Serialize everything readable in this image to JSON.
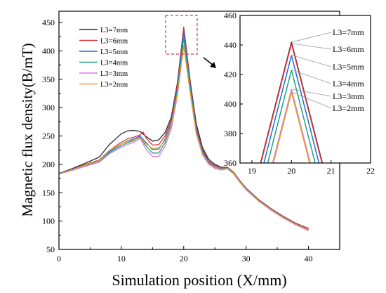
{
  "colors": {
    "7mm": "#2b2b2b",
    "6mm": "#e0323c",
    "5mm": "#1a6fd6",
    "4mm": "#1fa37a",
    "3mm": "#d77ae6",
    "2mm": "#e6a12a",
    "highlight_box": "#e0323c"
  },
  "chart_data": [
    {
      "type": "line",
      "xlabel": "Simulation position (X/mm)",
      "ylabel": "Magnetic flux density(B/mT)",
      "xlim": [
        0,
        45
      ],
      "ylim": [
        50,
        470
      ],
      "xticks": [
        0,
        10,
        20,
        30,
        40
      ],
      "yticks": [
        50,
        100,
        150,
        200,
        250,
        300,
        350,
        400,
        450
      ],
      "legend": "top-left",
      "series": [
        {
          "name": "L3=7mm",
          "key": "7mm",
          "x": [
            0,
            2,
            4,
            6.5,
            8,
            10,
            11,
            12,
            13,
            14,
            15,
            16,
            17,
            18,
            19,
            20,
            21,
            22,
            23,
            24,
            25,
            26,
            27,
            28,
            29,
            30,
            32,
            34,
            36,
            38,
            40
          ],
          "y": [
            184,
            192,
            201,
            213,
            234,
            254,
            259,
            260,
            258,
            249,
            241,
            243,
            256,
            283,
            345,
            442,
            350,
            272,
            230,
            209,
            200,
            195,
            195,
            186,
            171,
            158,
            138,
            122,
            108,
            96,
            86
          ]
        },
        {
          "name": "L3=6mm",
          "key": "6mm",
          "x": [
            0,
            2,
            4,
            6.5,
            8,
            10,
            11,
            12,
            13,
            13.5,
            14,
            15,
            16,
            17,
            18,
            19,
            20,
            21,
            22,
            23,
            24,
            25,
            26,
            27,
            28,
            29,
            30,
            32,
            34,
            36,
            38,
            40
          ],
          "y": [
            184,
            191,
            199,
            208,
            224,
            239,
            245,
            248,
            252,
            257,
            246,
            234,
            235,
            250,
            278,
            342,
            441,
            347,
            266,
            226,
            206,
            198,
            194,
            195,
            186,
            171,
            158,
            138,
            122,
            108,
            96,
            87
          ]
        },
        {
          "name": "L3=5mm",
          "key": "5mm",
          "x": [
            0,
            2,
            4,
            6.5,
            8,
            10,
            11,
            12,
            13,
            14,
            15,
            16,
            17,
            18,
            19,
            20,
            21,
            22,
            23,
            24,
            25,
            26,
            27,
            28,
            29,
            30,
            32,
            34,
            36,
            38,
            40
          ],
          "y": [
            184,
            191,
            198,
            207,
            222,
            236,
            241,
            245,
            250,
            238,
            226,
            227,
            244,
            273,
            336,
            433,
            342,
            262,
            223,
            204,
            196,
            192,
            194,
            185,
            170,
            157,
            137,
            121,
            107,
            95,
            85
          ]
        },
        {
          "name": "L3=4mm",
          "key": "4mm",
          "x": [
            0,
            2,
            4,
            6.5,
            8,
            10,
            11,
            12,
            13,
            14,
            15,
            16,
            17,
            18,
            19,
            20,
            21,
            22,
            23,
            24,
            25,
            26,
            27,
            28,
            29,
            30,
            32,
            34,
            36,
            38,
            40
          ],
          "y": [
            183,
            190,
            197,
            206,
            220,
            233,
            238,
            242,
            248,
            232,
            220,
            220,
            238,
            268,
            330,
            423,
            336,
            258,
            220,
            202,
            194,
            191,
            193,
            184,
            169,
            156,
            136,
            120,
            106,
            94,
            84
          ]
        },
        {
          "name": "L3=3mm",
          "key": "3mm",
          "x": [
            0,
            2,
            4,
            6.5,
            8,
            10,
            11,
            12,
            13,
            14,
            15,
            16,
            17,
            18,
            19,
            20,
            21,
            22,
            23,
            24,
            25,
            26,
            27,
            28,
            29,
            30,
            32,
            34,
            36,
            38,
            40
          ],
          "y": [
            183,
            189,
            196,
            204,
            218,
            230,
            235,
            239,
            246,
            226,
            214,
            214,
            232,
            262,
            322,
            410,
            328,
            254,
            217,
            200,
            193,
            190,
            192,
            183,
            168,
            155,
            135,
            119,
            105,
            93,
            83
          ]
        },
        {
          "name": "L3=2mm",
          "key": "2mm",
          "x": [
            0,
            2,
            4,
            6.5,
            8,
            10,
            11,
            12,
            13,
            14,
            15,
            16,
            17,
            18,
            19,
            20,
            21,
            22,
            23,
            24,
            25,
            26,
            27,
            28,
            29,
            30,
            32,
            34,
            36,
            38,
            40
          ],
          "y": [
            183,
            190,
            198,
            207,
            224,
            236,
            240,
            243,
            247,
            236,
            228,
            229,
            242,
            268,
            326,
            408,
            330,
            256,
            219,
            202,
            195,
            191,
            193,
            184,
            169,
            156,
            136,
            120,
            106,
            94,
            85
          ]
        }
      ]
    },
    {
      "type": "line",
      "xlim": [
        18.7,
        22
      ],
      "ylim": [
        360,
        460
      ],
      "xticks": [
        19,
        20,
        21,
        22
      ],
      "yticks": [
        360,
        380,
        400,
        420,
        440,
        460
      ],
      "peaks": [
        {
          "label": "L3=7mm",
          "key": "7mm",
          "x": 20,
          "y": 442
        },
        {
          "label": "L3=6mm",
          "key": "6mm",
          "x": 20,
          "y": 441
        },
        {
          "label": "L3=5mm",
          "key": "5mm",
          "x": 20,
          "y": 433
        },
        {
          "label": "L3=4mm",
          "key": "4mm",
          "x": 20,
          "y": 423
        },
        {
          "label": "L3=3mm",
          "key": "3mm",
          "x": 20,
          "y": 410
        },
        {
          "label": "L3=2mm",
          "key": "2mm",
          "x": 20,
          "y": 408
        }
      ],
      "slope_per_mm": 105
    }
  ]
}
